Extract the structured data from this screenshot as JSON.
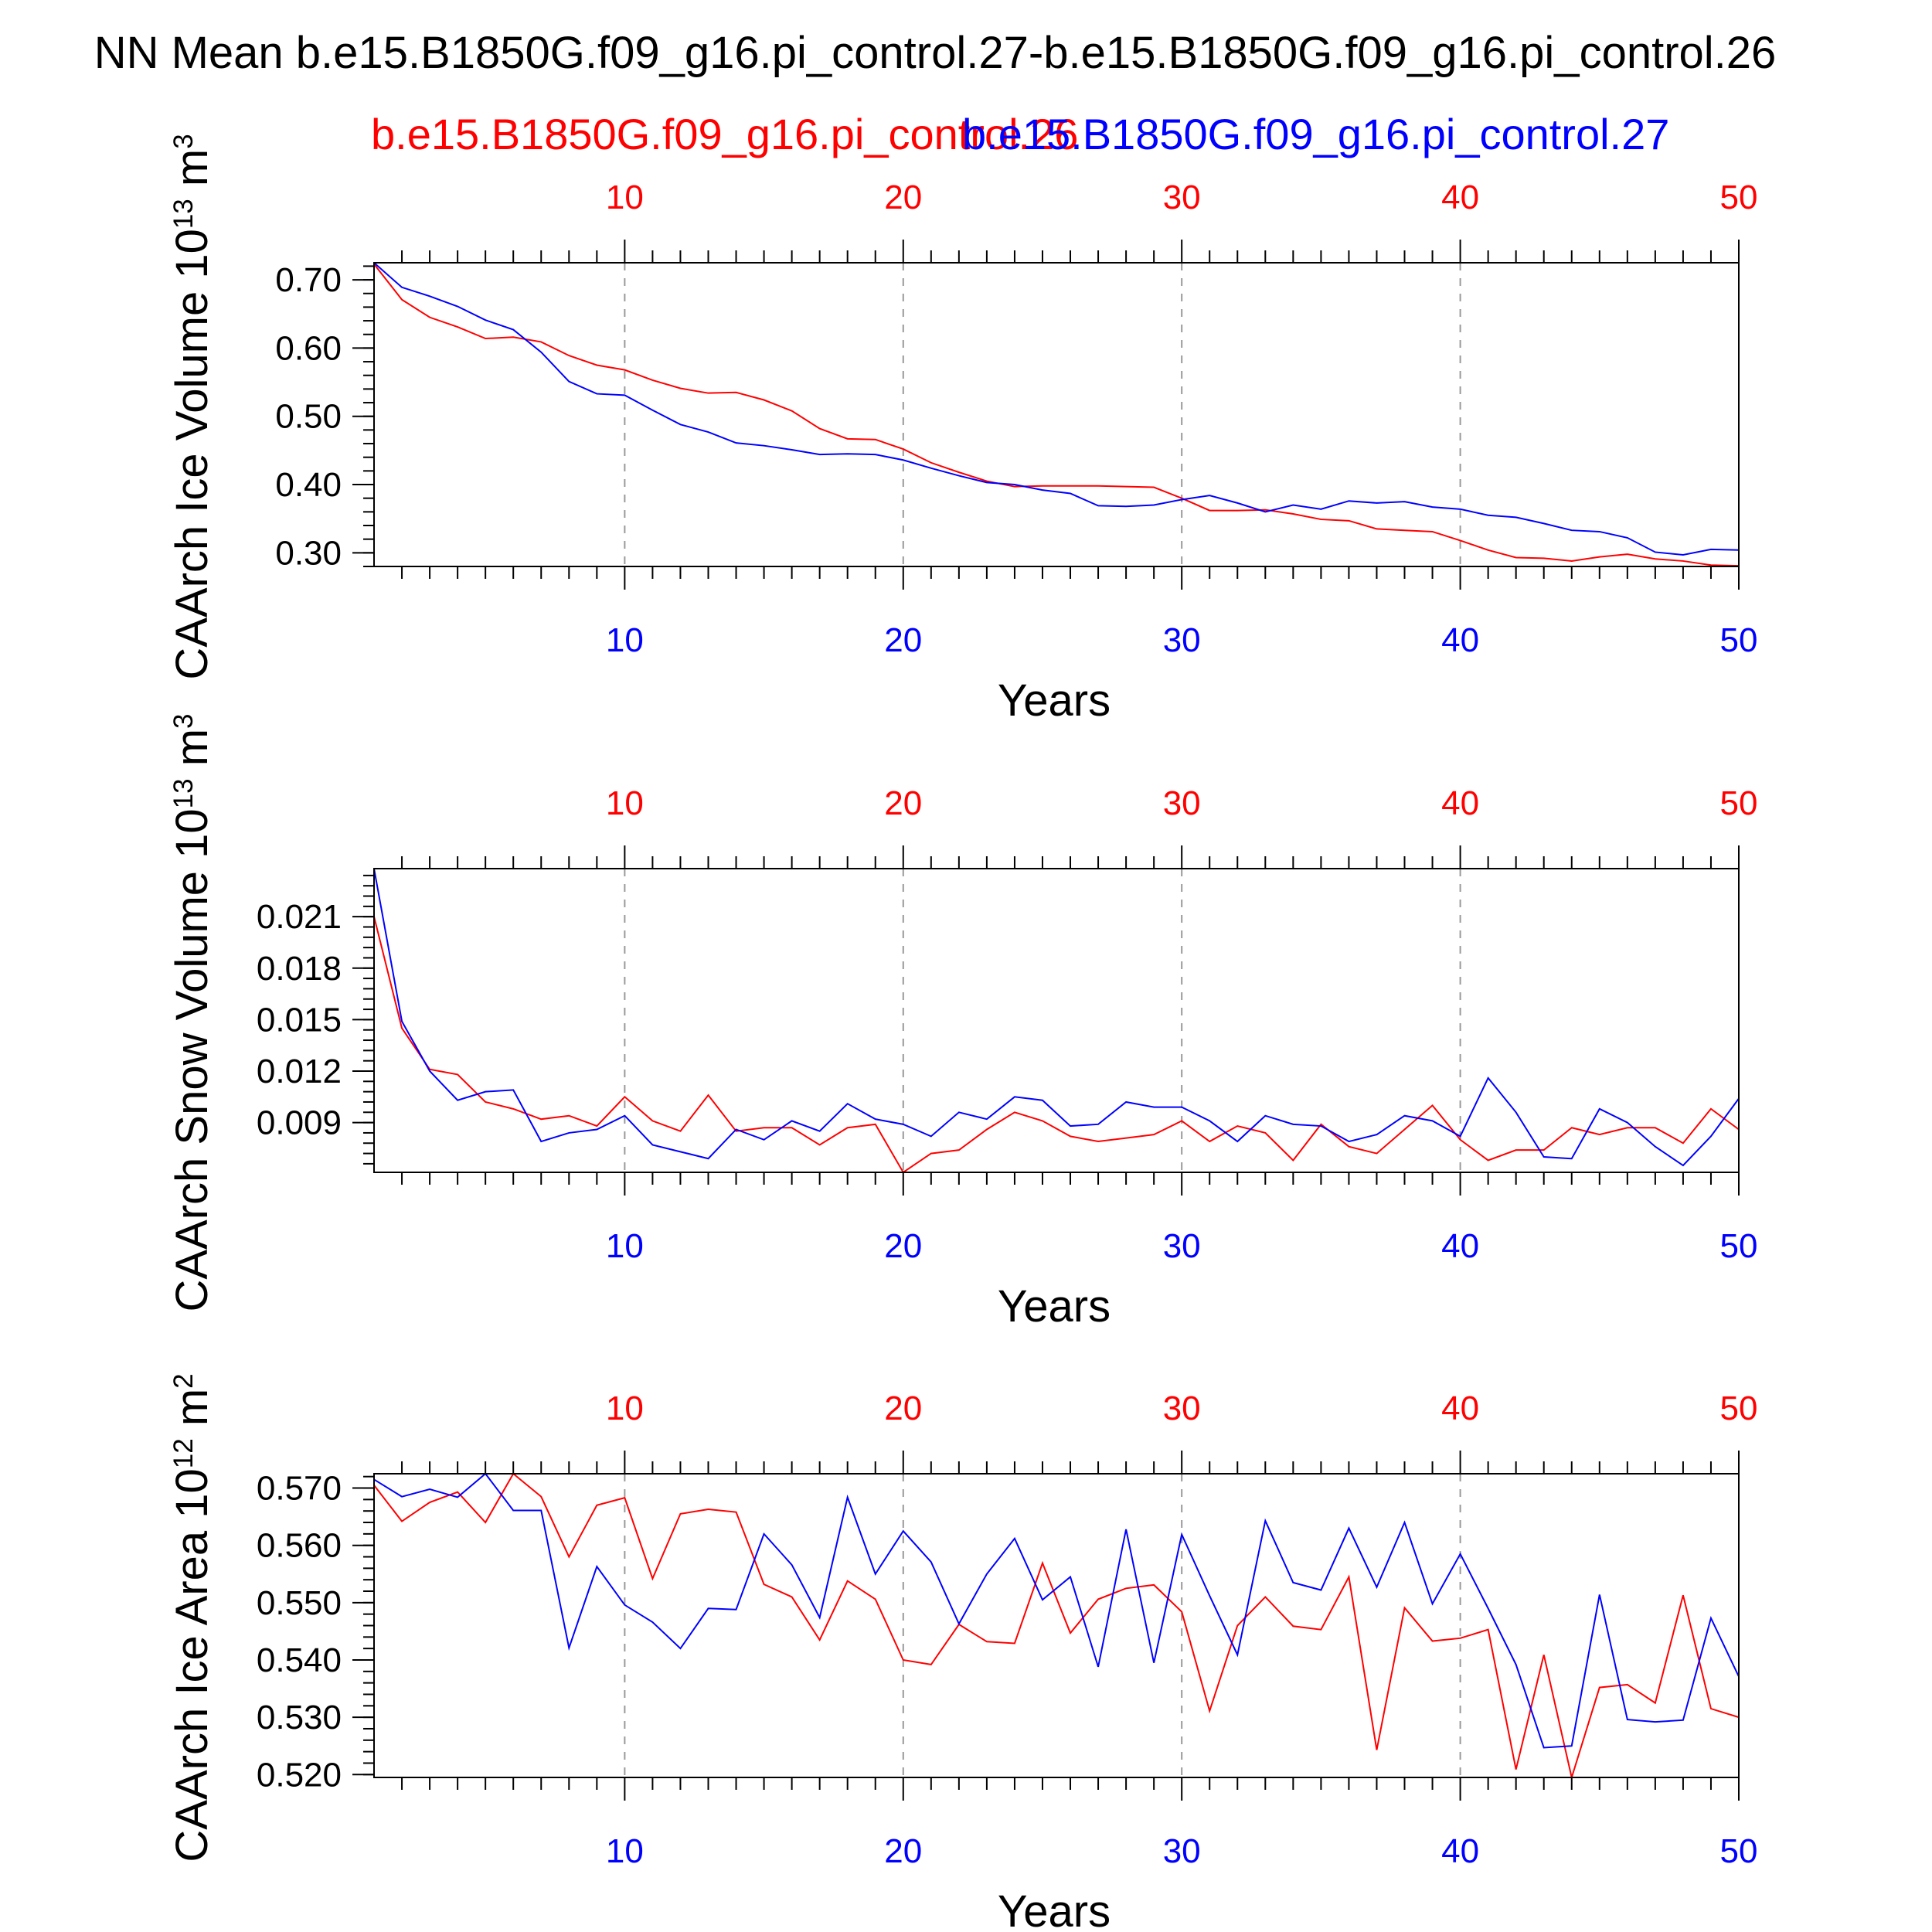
{
  "title": "NN Mean b.e15.B1850G.f09_g16.pi_control.27-b.e15.B1850G.f09_g16.pi_control.26",
  "colors": {
    "case1": "#ff0000",
    "case2": "#0000ff",
    "axis": "#000000",
    "grid": "#999999"
  },
  "chart_data": [
    {
      "type": "line",
      "ylabel": "CAArch Ice Volume 10^13 m^3",
      "xlabel": "Years",
      "xlim": [
        1,
        50
      ],
      "ylim": [
        0.28,
        0.725
      ],
      "yticks": [
        0.3,
        0.4,
        0.5,
        0.6,
        0.7
      ],
      "ytick_labels": [
        "0.30",
        "0.40",
        "0.50",
        "0.60",
        "0.70"
      ],
      "xticks": [
        10,
        20,
        30,
        40,
        50
      ],
      "xtick_labels": [
        "10",
        "20",
        "30",
        "40",
        "50"
      ],
      "legend": [
        "b.e15.B1850G.f09_g16.pi_control.26",
        "b.e15.B1850G.f09_g16.pi_control.27"
      ],
      "grid": "dashed vertical",
      "series": [
        {
          "name": "b.e15.B1850G.f09_g16.pi_control.26",
          "color": "#ff0000",
          "values": [
            0.723,
            0.671,
            0.645,
            0.631,
            0.614,
            0.616,
            0.609,
            0.589,
            0.575,
            0.568,
            0.553,
            0.541,
            0.534,
            0.535,
            0.524,
            0.508,
            0.482,
            0.467,
            0.466,
            0.452,
            0.432,
            0.418,
            0.405,
            0.397,
            0.398,
            0.398,
            0.398,
            0.397,
            0.396,
            0.38,
            0.362,
            0.362,
            0.363,
            0.357,
            0.349,
            0.347,
            0.335,
            0.333,
            0.331,
            0.318,
            0.304,
            0.293,
            0.292,
            0.288,
            0.294,
            0.298,
            0.291,
            0.288,
            0.282,
            0.281
          ]
        },
        {
          "name": "b.e15.B1850G.f09_g16.pi_control.27",
          "color": "#0000ff",
          "values": [
            0.725,
            0.689,
            0.676,
            0.661,
            0.641,
            0.627,
            0.594,
            0.551,
            0.533,
            0.531,
            0.509,
            0.488,
            0.477,
            0.461,
            0.457,
            0.451,
            0.444,
            0.445,
            0.444,
            0.436,
            0.424,
            0.413,
            0.403,
            0.4,
            0.392,
            0.387,
            0.369,
            0.368,
            0.37,
            0.378,
            0.384,
            0.373,
            0.36,
            0.37,
            0.364,
            0.376,
            0.373,
            0.375,
            0.367,
            0.364,
            0.355,
            0.352,
            0.343,
            0.333,
            0.331,
            0.322,
            0.301,
            0.297,
            0.305,
            0.304
          ]
        }
      ]
    },
    {
      "type": "line",
      "ylabel": "CAArch Snow Volume 10^13 m^3",
      "xlabel": "Years",
      "xlim": [
        1,
        50
      ],
      "ylim": [
        0.0061,
        0.0238
      ],
      "yticks": [
        0.009,
        0.012,
        0.015,
        0.018,
        0.021
      ],
      "ytick_labels": [
        "0.009",
        "0.012",
        "0.015",
        "0.018",
        "0.021"
      ],
      "xticks": [
        10,
        20,
        30,
        40,
        50
      ],
      "xtick_labels": [
        "10",
        "20",
        "30",
        "40",
        "50"
      ],
      "legend": [
        "b.e15.B1850G.f09_g16.pi_control.26",
        "b.e15.B1850G.f09_g16.pi_control.27"
      ],
      "grid": "dashed vertical",
      "series": [
        {
          "name": "b.e15.B1850G.f09_g16.pi_control.26",
          "color": "#ff0000",
          "values": [
            0.021,
            0.0145,
            0.0121,
            0.0118,
            0.0102,
            0.0098,
            0.0092,
            0.0094,
            0.0088,
            0.0105,
            0.0091,
            0.0085,
            0.0106,
            0.0085,
            0.0087,
            0.0087,
            0.0077,
            0.0087,
            0.0089,
            0.0061,
            0.0072,
            0.0074,
            0.0086,
            0.0096,
            0.0091,
            0.0082,
            0.0079,
            0.0081,
            0.0083,
            0.0091,
            0.0079,
            0.0088,
            0.0084,
            0.0068,
            0.0089,
            0.0076,
            0.0072,
            0.0086,
            0.01,
            0.008,
            0.0068,
            0.0074,
            0.0074,
            0.0087,
            0.0083,
            0.0087,
            0.0087,
            0.0078,
            0.0098,
            0.0086
          ]
        },
        {
          "name": "b.e15.B1850G.f09_g16.pi_control.27",
          "color": "#0000ff",
          "values": [
            0.0238,
            0.0149,
            0.012,
            0.0103,
            0.0108,
            0.0109,
            0.0079,
            0.0084,
            0.0086,
            0.0094,
            0.0077,
            0.0073,
            0.0069,
            0.0086,
            0.008,
            0.0091,
            0.0085,
            0.0101,
            0.0092,
            0.0089,
            0.0082,
            0.0096,
            0.0092,
            0.0105,
            0.0103,
            0.0088,
            0.0089,
            0.0102,
            0.0099,
            0.0099,
            0.0091,
            0.0079,
            0.0094,
            0.0089,
            0.0088,
            0.0079,
            0.0083,
            0.0094,
            0.0091,
            0.0082,
            0.0116,
            0.0096,
            0.007,
            0.0069,
            0.0098,
            0.009,
            0.0076,
            0.0065,
            0.0082,
            0.0104
          ]
        }
      ]
    },
    {
      "type": "line",
      "ylabel": "CAArch Ice Area 10^12 m^2",
      "xlabel": "Years",
      "xlim": [
        1,
        50
      ],
      "ylim": [
        0.5195,
        0.5725
      ],
      "yticks": [
        0.52,
        0.53,
        0.54,
        0.55,
        0.56,
        0.57
      ],
      "ytick_labels": [
        "0.520",
        "0.530",
        "0.540",
        "0.550",
        "0.560",
        "0.570"
      ],
      "xticks": [
        10,
        20,
        30,
        40,
        50
      ],
      "xtick_labels": [
        "10",
        "20",
        "30",
        "40",
        "50"
      ],
      "legend": [
        "b.e15.B1850G.f09_g16.pi_control.26",
        "b.e15.B1850G.f09_g16.pi_control.27"
      ],
      "grid": "dashed vertical",
      "series": [
        {
          "name": "b.e15.B1850G.f09_g16.pi_control.26",
          "color": "#ff0000",
          "values": [
            0.5705,
            0.5642,
            0.5675,
            0.5693,
            0.564,
            0.5725,
            0.5685,
            0.558,
            0.567,
            0.5683,
            0.5542,
            0.5655,
            0.5663,
            0.5658,
            0.5532,
            0.551,
            0.5435,
            0.5538,
            0.5506,
            0.54,
            0.5392,
            0.5462,
            0.5432,
            0.5429,
            0.5569,
            0.5447,
            0.5506,
            0.5525,
            0.5531,
            0.5484,
            0.5311,
            0.546,
            0.551,
            0.5459,
            0.5453,
            0.5545,
            0.5243,
            0.5491,
            0.5433,
            0.5438,
            0.5453,
            0.5209,
            0.5409,
            0.5195,
            0.5352,
            0.5357,
            0.5325,
            0.5513,
            0.5315,
            0.53
          ]
        },
        {
          "name": "b.e15.B1850G.f09_g16.pi_control.27",
          "color": "#0000ff",
          "values": [
            0.5715,
            0.5685,
            0.5698,
            0.5684,
            0.5725,
            0.5661,
            0.5661,
            0.5421,
            0.5563,
            0.5496,
            0.5466,
            0.542,
            0.549,
            0.5488,
            0.562,
            0.5566,
            0.5474,
            0.5684,
            0.555,
            0.5625,
            0.5571,
            0.5463,
            0.555,
            0.5612,
            0.5505,
            0.5545,
            0.5388,
            0.5628,
            0.5395,
            0.5619,
            0.5512,
            0.5409,
            0.5643,
            0.5535,
            0.5522,
            0.563,
            0.5527,
            0.564,
            0.5498,
            0.5585,
            0.549,
            0.5392,
            0.5247,
            0.525,
            0.5514,
            0.5296,
            0.5292,
            0.5295,
            0.5473,
            0.5371
          ]
        }
      ]
    }
  ]
}
